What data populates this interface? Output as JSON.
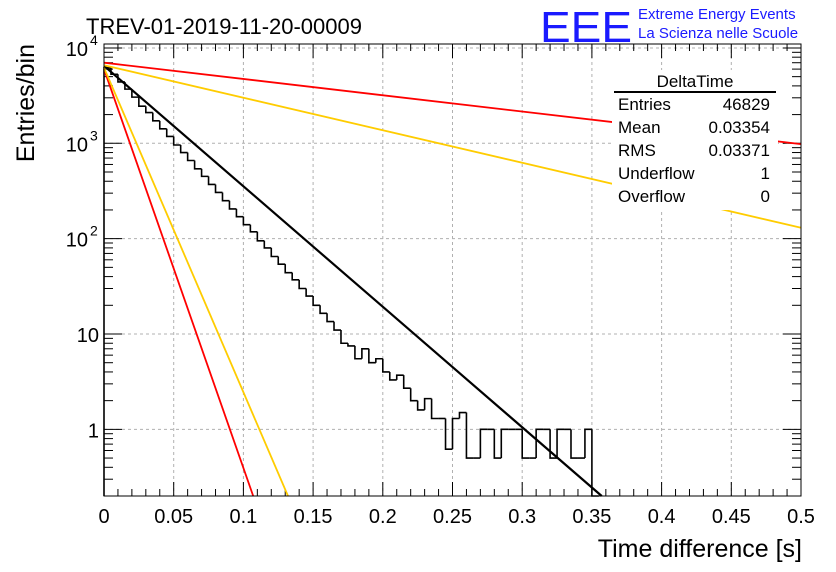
{
  "title": "TREV-01-2019-11-20-00009",
  "logo": {
    "text": "EEE",
    "line1": "Extreme Energy Events",
    "line2": "La Scienza nelle Scuole",
    "color": "#1a1aff"
  },
  "stats": {
    "name": "DeltaTime",
    "rows": [
      {
        "label": "Entries",
        "value": "46829"
      },
      {
        "label": "Mean",
        "value": "0.03354"
      },
      {
        "label": "RMS",
        "value": "0.03371"
      },
      {
        "label": "Underflow",
        "value": "1"
      },
      {
        "label": "Overflow",
        "value": "0"
      }
    ]
  },
  "chart_data": {
    "type": "histogram",
    "title": "TREV-01-2019-11-20-00009",
    "xlabel": "Time difference [s]",
    "ylabel": "Entries/bin",
    "xlim": [
      0,
      0.5
    ],
    "ylim": [
      0.2,
      11000
    ],
    "yscale": "log",
    "grid": true,
    "xticks": [
      "0",
      "0.05",
      "0.1",
      "0.15",
      "0.2",
      "0.25",
      "0.3",
      "0.35",
      "0.4",
      "0.45",
      "0.5"
    ],
    "yticks": [
      {
        "value": 1,
        "label": "1"
      },
      {
        "value": 10,
        "label": "10"
      },
      {
        "value": 100,
        "label": "10",
        "exp": "2"
      },
      {
        "value": 1000,
        "label": "10",
        "exp": "3"
      },
      {
        "value": 10000,
        "label": "10",
        "exp": "4"
      }
    ],
    "bin_width": 0.005,
    "histogram": [
      {
        "x": 0.0,
        "y": 6200
      },
      {
        "x": 0.005,
        "y": 5300
      },
      {
        "x": 0.01,
        "y": 4400
      },
      {
        "x": 0.015,
        "y": 3700
      },
      {
        "x": 0.02,
        "y": 3050
      },
      {
        "x": 0.025,
        "y": 2450
      },
      {
        "x": 0.03,
        "y": 2100
      },
      {
        "x": 0.035,
        "y": 1720
      },
      {
        "x": 0.04,
        "y": 1420
      },
      {
        "x": 0.045,
        "y": 1180
      },
      {
        "x": 0.05,
        "y": 960
      },
      {
        "x": 0.055,
        "y": 800
      },
      {
        "x": 0.06,
        "y": 660
      },
      {
        "x": 0.065,
        "y": 540
      },
      {
        "x": 0.07,
        "y": 450
      },
      {
        "x": 0.075,
        "y": 370
      },
      {
        "x": 0.08,
        "y": 305
      },
      {
        "x": 0.085,
        "y": 250
      },
      {
        "x": 0.09,
        "y": 205
      },
      {
        "x": 0.095,
        "y": 170
      },
      {
        "x": 0.1,
        "y": 140
      },
      {
        "x": 0.105,
        "y": 118
      },
      {
        "x": 0.11,
        "y": 95
      },
      {
        "x": 0.115,
        "y": 80
      },
      {
        "x": 0.12,
        "y": 65
      },
      {
        "x": 0.125,
        "y": 54
      },
      {
        "x": 0.13,
        "y": 44
      },
      {
        "x": 0.135,
        "y": 37
      },
      {
        "x": 0.14,
        "y": 30
      },
      {
        "x": 0.145,
        "y": 25
      },
      {
        "x": 0.15,
        "y": 20
      },
      {
        "x": 0.155,
        "y": 16.5
      },
      {
        "x": 0.16,
        "y": 13.5
      },
      {
        "x": 0.165,
        "y": 11
      },
      {
        "x": 0.17,
        "y": 8
      },
      {
        "x": 0.175,
        "y": 7.5
      },
      {
        "x": 0.18,
        "y": 5.5
      },
      {
        "x": 0.185,
        "y": 7
      },
      {
        "x": 0.19,
        "y": 5
      },
      {
        "x": 0.195,
        "y": 5.5
      },
      {
        "x": 0.2,
        "y": 4
      },
      {
        "x": 0.205,
        "y": 3.3
      },
      {
        "x": 0.21,
        "y": 3.7
      },
      {
        "x": 0.215,
        "y": 2.7
      },
      {
        "x": 0.22,
        "y": 2
      },
      {
        "x": 0.225,
        "y": 1.6
      },
      {
        "x": 0.23,
        "y": 2.1
      },
      {
        "x": 0.235,
        "y": 1.3
      },
      {
        "x": 0.24,
        "y": 1.3
      },
      {
        "x": 0.245,
        "y": 0.62
      },
      {
        "x": 0.25,
        "y": 1.3
      },
      {
        "x": 0.255,
        "y": 1.5
      },
      {
        "x": 0.26,
        "y": 0.5
      },
      {
        "x": 0.265,
        "y": 0.5
      },
      {
        "x": 0.27,
        "y": 1
      },
      {
        "x": 0.275,
        "y": 1
      },
      {
        "x": 0.28,
        "y": 0.5
      },
      {
        "x": 0.285,
        "y": 1
      },
      {
        "x": 0.29,
        "y": 1
      },
      {
        "x": 0.295,
        "y": 1
      },
      {
        "x": 0.3,
        "y": 0.5
      },
      {
        "x": 0.305,
        "y": 0.5
      },
      {
        "x": 0.31,
        "y": 1
      },
      {
        "x": 0.315,
        "y": 1
      },
      {
        "x": 0.32,
        "y": 0.5
      },
      {
        "x": 0.325,
        "y": 1
      },
      {
        "x": 0.33,
        "y": 1
      },
      {
        "x": 0.335,
        "y": 0.5
      },
      {
        "x": 0.34,
        "y": 0.5
      },
      {
        "x": 0.345,
        "y": 1
      },
      {
        "x": 0.35,
        "y": 0
      }
    ],
    "series": [
      {
        "type": "line",
        "color": "#000000",
        "points": [
          [
            0,
            6500
          ],
          [
            0.357,
            0.2
          ]
        ]
      },
      {
        "type": "line",
        "color": "#ff0000",
        "points": [
          [
            0,
            7000
          ],
          [
            0.5,
            980
          ]
        ]
      },
      {
        "type": "line",
        "color": "#ffcc00",
        "points": [
          [
            0,
            6600
          ],
          [
            0.5,
            130
          ]
        ]
      },
      {
        "type": "line",
        "color": "#ff0000",
        "points": [
          [
            0,
            6000
          ],
          [
            0.107,
            0.2
          ]
        ]
      },
      {
        "type": "line",
        "color": "#ffcc00",
        "points": [
          [
            0,
            6200
          ],
          [
            0.132,
            0.2
          ]
        ]
      }
    ]
  }
}
